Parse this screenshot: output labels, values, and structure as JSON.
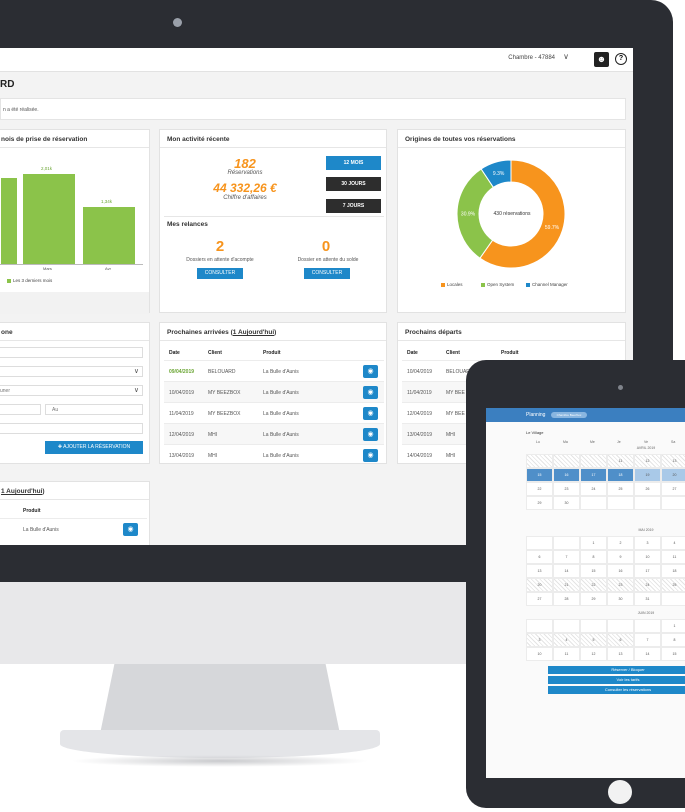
{
  "header": {
    "room": "Chambre - 47884",
    "page_title": "RD",
    "notice": "n a été réalisée."
  },
  "chart_card": {
    "title": "nois de prise de réservation",
    "legend": "Les 3 derniers mois"
  },
  "chart_data": {
    "type": "bar",
    "title": "",
    "categories": [
      "",
      "Mars",
      "Avr"
    ],
    "values": [
      null,
      2.01,
      1.34
    ],
    "value_labels": [
      "",
      "2,01k",
      "1,34k"
    ],
    "series": [
      {
        "name": "Les 3 derniers mois",
        "color": "#8bc34a"
      }
    ]
  },
  "activity_card": {
    "title": "Mon activité récente",
    "reservations_count": "182",
    "reservations_label": "Réservations",
    "revenue": "44 332,26 €",
    "revenue_label": "Chiffre d'affaires",
    "periods": [
      "12 MOIS",
      "30 JOURS",
      "7 JOURS"
    ],
    "reminders_title": "Mes relances",
    "deposit_count": "2",
    "deposit_label": "Dossiers en attente d'acompte",
    "balance_count": "0",
    "balance_label": "Dossier en attente du solde",
    "consult_label": "CONSULTER"
  },
  "origins_card": {
    "title": "Origines de toutes vos réservations",
    "center_label": "430 réservations",
    "slices": [
      {
        "name": "Locales",
        "value": 59.7,
        "label": "59.7%",
        "color": "#f7941d"
      },
      {
        "name": "Open System",
        "value": 30.9,
        "label": "30.9%",
        "color": "#8bc34a"
      },
      {
        "name": "Channel Manager",
        "value": 9.3,
        "label": "9.3%",
        "color": "#1e88c9"
      }
    ]
  },
  "form_card": {
    "title": "one",
    "select_placeholder": "uner",
    "date_to": "Au",
    "add_button": "AJOUTER LA RÉSERVATION"
  },
  "arrivals_card": {
    "title_prefix": "Prochaines arrivées (",
    "title_link": "1 Aujourd'hui",
    "title_suffix": ")",
    "columns": [
      "Date",
      "Client",
      "Produit"
    ],
    "rows": [
      {
        "date": "09/04/2019",
        "client": "BELOUARD",
        "product": "La Bulle d'Aunis"
      },
      {
        "date": "10/04/2019",
        "client": "MY BEEZBOX",
        "product": "La Bulle d'Aunis"
      },
      {
        "date": "11/04/2019",
        "client": "MY BEEZBOX",
        "product": "La Bulle d'Aunis"
      },
      {
        "date": "12/04/2019",
        "client": "MHI",
        "product": "La Bulle d'Aunis"
      },
      {
        "date": "13/04/2019",
        "client": "MHI",
        "product": "La Bulle d'Aunis"
      }
    ]
  },
  "departures_card": {
    "title": "Prochains départs",
    "columns": [
      "Date",
      "Client",
      "Produit"
    ],
    "rows": [
      {
        "date": "10/04/2019",
        "client": "BELOUAR"
      },
      {
        "date": "11/04/2019",
        "client": "MY BEE"
      },
      {
        "date": "12/04/2019",
        "client": "MY BEE"
      },
      {
        "date": "13/04/2019",
        "client": "MHI"
      },
      {
        "date": "14/04/2019",
        "client": "MHI"
      }
    ]
  },
  "bottom_card": {
    "title_link": "1 Aujourd'hui",
    "title_suffix": ")",
    "column": "Produit",
    "product": "La Bulle d'Aunis"
  },
  "tablet": {
    "title": "Planning",
    "tag": "Chambre Beezbox",
    "subtitle": "Le Village",
    "weekdays": [
      "Lu",
      "Ma",
      "Me",
      "Je",
      "Ve",
      "Sa"
    ],
    "months": [
      "AVRIL 2019",
      "MAI 2019",
      "JUIN 2019"
    ],
    "april": [
      "",
      "",
      "",
      "11",
      "12",
      "13",
      "15",
      "16",
      "17",
      "18",
      "19",
      "20",
      "22",
      "23",
      "24",
      "25",
      "26",
      "27",
      "29",
      "30",
      "",
      "",
      "",
      ""
    ],
    "may": [
      "",
      "",
      "1",
      "2",
      "3",
      "4",
      "6",
      "7",
      "8",
      "9",
      "10",
      "11",
      "13",
      "14",
      "15",
      "16",
      "17",
      "18",
      "20",
      "21",
      "22",
      "23",
      "24",
      "25",
      "27",
      "28",
      "29",
      "30",
      "31",
      ""
    ],
    "june": [
      "",
      "",
      "",
      "",
      "",
      "1",
      "3",
      "4",
      "5",
      "6",
      "7",
      "8",
      "10",
      "11",
      "12",
      "13",
      "14",
      "15"
    ],
    "buttons": [
      "Réserver / Bloquer",
      "Voir les tarifs",
      "Consulter les réservations"
    ]
  }
}
